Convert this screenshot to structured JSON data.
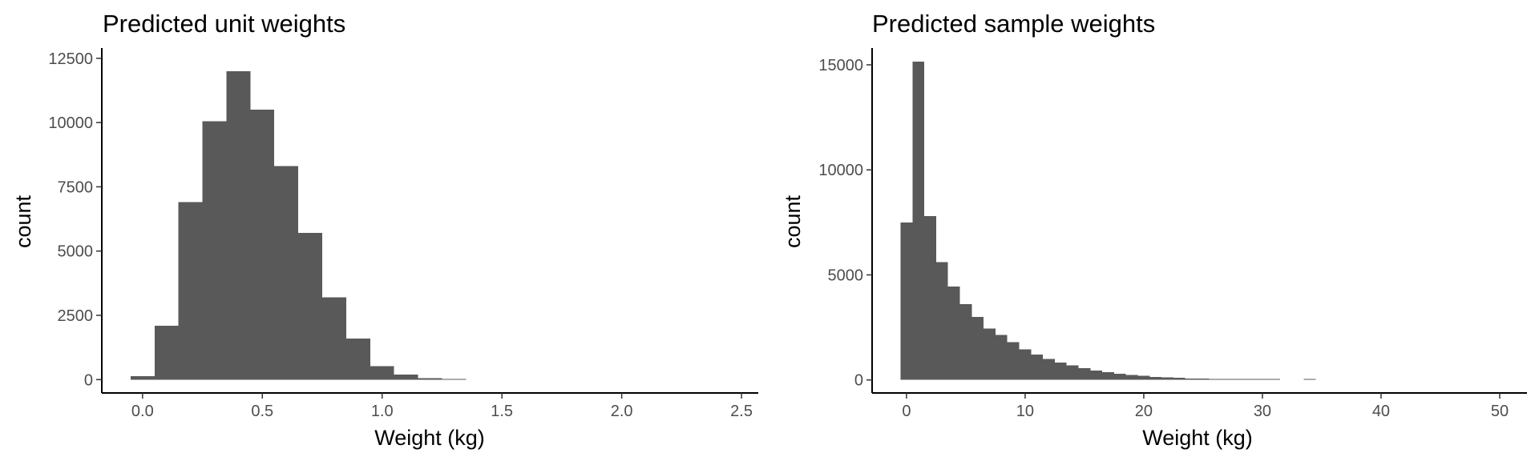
{
  "chart_data": [
    {
      "type": "bar",
      "title": "Predicted unit weights",
      "xlabel": "Weight (kg)",
      "ylabel": "count",
      "xlim": [
        -0.17,
        2.57
      ],
      "ylim": [
        -520,
        12900
      ],
      "xticks": [
        0.0,
        0.5,
        1.0,
        1.5,
        2.0,
        2.5
      ],
      "xtick_labels": [
        "0.0",
        "0.5",
        "1.0",
        "1.5",
        "2.0",
        "2.5"
      ],
      "yticks": [
        0,
        2500,
        5000,
        7500,
        10000,
        12500
      ],
      "ytick_labels": [
        "0",
        "2500",
        "5000",
        "7500",
        "10000",
        "12500"
      ],
      "grid": false,
      "bar_color": "#595959",
      "bins": [
        {
          "x0": -0.05,
          "x1": 0.05,
          "count": 130
        },
        {
          "x0": 0.05,
          "x1": 0.15,
          "count": 2100
        },
        {
          "x0": 0.15,
          "x1": 0.25,
          "count": 6900
        },
        {
          "x0": 0.25,
          "x1": 0.35,
          "count": 10050
        },
        {
          "x0": 0.35,
          "x1": 0.45,
          "count": 12000
        },
        {
          "x0": 0.45,
          "x1": 0.55,
          "count": 10500
        },
        {
          "x0": 0.55,
          "x1": 0.65,
          "count": 8300
        },
        {
          "x0": 0.65,
          "x1": 0.75,
          "count": 5700
        },
        {
          "x0": 0.75,
          "x1": 0.85,
          "count": 3200
        },
        {
          "x0": 0.85,
          "x1": 0.95,
          "count": 1600
        },
        {
          "x0": 0.95,
          "x1": 1.05,
          "count": 520
        },
        {
          "x0": 1.05,
          "x1": 1.15,
          "count": 200
        },
        {
          "x0": 1.15,
          "x1": 1.25,
          "count": 60
        },
        {
          "x0": 1.25,
          "x1": 1.35,
          "count": 15
        }
      ]
    },
    {
      "type": "bar",
      "title": "Predicted sample weights",
      "xlabel": "Weight (kg)",
      "ylabel": "count",
      "xlim": [
        -2.9,
        52.3
      ],
      "ylim": [
        -620,
        15800
      ],
      "xticks": [
        0,
        10,
        20,
        30,
        40,
        50
      ],
      "xtick_labels": [
        "0",
        "10",
        "20",
        "30",
        "40",
        "50"
      ],
      "yticks": [
        0,
        5000,
        10000,
        15000
      ],
      "ytick_labels": [
        "0",
        "5000",
        "10000",
        "15000"
      ],
      "grid": false,
      "bar_color": "#595959",
      "bins": [
        {
          "x0": -0.5,
          "x1": 0.5,
          "count": 7500
        },
        {
          "x0": 0.5,
          "x1": 1.5,
          "count": 15150
        },
        {
          "x0": 1.5,
          "x1": 2.5,
          "count": 7800
        },
        {
          "x0": 2.5,
          "x1": 3.5,
          "count": 5600
        },
        {
          "x0": 3.5,
          "x1": 4.5,
          "count": 4450
        },
        {
          "x0": 4.5,
          "x1": 5.5,
          "count": 3600
        },
        {
          "x0": 5.5,
          "x1": 6.5,
          "count": 3000
        },
        {
          "x0": 6.5,
          "x1": 7.5,
          "count": 2450
        },
        {
          "x0": 7.5,
          "x1": 8.5,
          "count": 2150
        },
        {
          "x0": 8.5,
          "x1": 9.5,
          "count": 1800
        },
        {
          "x0": 9.5,
          "x1": 10.5,
          "count": 1450
        },
        {
          "x0": 10.5,
          "x1": 11.5,
          "count": 1200
        },
        {
          "x0": 11.5,
          "x1": 12.5,
          "count": 1000
        },
        {
          "x0": 12.5,
          "x1": 13.5,
          "count": 820
        },
        {
          "x0": 13.5,
          "x1": 14.5,
          "count": 700
        },
        {
          "x0": 14.5,
          "x1": 15.5,
          "count": 570
        },
        {
          "x0": 15.5,
          "x1": 16.5,
          "count": 450
        },
        {
          "x0": 16.5,
          "x1": 17.5,
          "count": 370
        },
        {
          "x0": 17.5,
          "x1": 18.5,
          "count": 300
        },
        {
          "x0": 18.5,
          "x1": 19.5,
          "count": 240
        },
        {
          "x0": 19.5,
          "x1": 20.5,
          "count": 190
        },
        {
          "x0": 20.5,
          "x1": 21.5,
          "count": 150
        },
        {
          "x0": 21.5,
          "x1": 22.5,
          "count": 120
        },
        {
          "x0": 22.5,
          "x1": 23.5,
          "count": 95
        },
        {
          "x0": 23.5,
          "x1": 24.5,
          "count": 75
        },
        {
          "x0": 24.5,
          "x1": 25.5,
          "count": 60
        },
        {
          "x0": 25.5,
          "x1": 26.5,
          "count": 45
        },
        {
          "x0": 26.5,
          "x1": 27.5,
          "count": 35
        },
        {
          "x0": 27.5,
          "x1": 28.5,
          "count": 28
        },
        {
          "x0": 28.5,
          "x1": 29.5,
          "count": 22
        },
        {
          "x0": 29.5,
          "x1": 30.5,
          "count": 17
        },
        {
          "x0": 30.5,
          "x1": 31.5,
          "count": 12
        },
        {
          "x0": 33.5,
          "x1": 34.5,
          "count": 6
        }
      ]
    }
  ]
}
